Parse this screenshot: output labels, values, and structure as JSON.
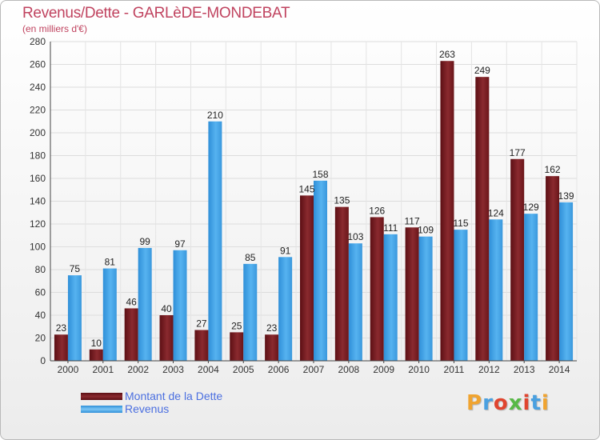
{
  "title": "Revenus/Dette - GARLèDE-MONDEBAT",
  "subtitle": "(en milliers d'€)",
  "logo": "Proxiti",
  "chart_data": {
    "type": "bar",
    "categories": [
      "2000",
      "2001",
      "2002",
      "2003",
      "2004",
      "2005",
      "2006",
      "2007",
      "2008",
      "2009",
      "2010",
      "2011",
      "2012",
      "2013",
      "2014"
    ],
    "series": [
      {
        "name": "Montant de la Dette",
        "color": "#7a1a1f",
        "values": [
          23,
          10,
          46,
          40,
          27,
          25,
          23,
          145,
          135,
          126,
          117,
          263,
          249,
          177,
          162
        ]
      },
      {
        "name": "Revenus",
        "color": "#3fa1e6",
        "values": [
          75,
          81,
          99,
          97,
          210,
          85,
          91,
          158,
          103,
          111,
          109,
          115,
          124,
          129,
          139
        ]
      }
    ],
    "ylim": [
      0,
      280
    ],
    "yticks": [
      0,
      20,
      40,
      60,
      80,
      100,
      120,
      140,
      160,
      180,
      200,
      220,
      240,
      260,
      280
    ],
    "grid": true,
    "legend": "bottom-left"
  }
}
